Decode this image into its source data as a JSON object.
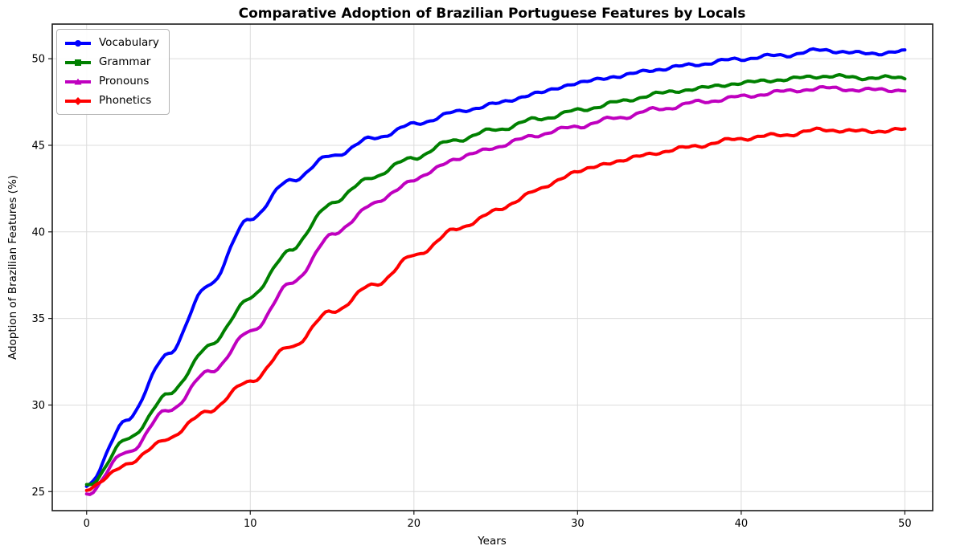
{
  "chart_data": {
    "type": "line",
    "title": "Comparative Adoption of Brazilian Portuguese Features by Locals",
    "xlabel": "Years",
    "ylabel": "Adoption of Brazilian Features (%)",
    "xlim": [
      -2.1,
      51.7
    ],
    "ylim": [
      23.9,
      52.0
    ],
    "xticks": [
      0,
      10,
      20,
      30,
      40,
      50
    ],
    "yticks": [
      25,
      30,
      35,
      40,
      45,
      50
    ],
    "grid": true,
    "grid_color": "#dcdcdc",
    "legend_position": "upper-left",
    "x": [
      0,
      2.5,
      5,
      7.5,
      10,
      12.5,
      15,
      17.5,
      20,
      22.5,
      25,
      27.5,
      30,
      32.5,
      35,
      37.5,
      40,
      42.5,
      45,
      47.5,
      50
    ],
    "series": [
      {
        "name": "Vocabulary",
        "color": "#0000ff",
        "marker": "circle",
        "values": [
          25.3,
          29.2,
          33.0,
          37.0,
          40.8,
          43.0,
          44.4,
          45.4,
          46.2,
          46.9,
          47.4,
          48.0,
          48.6,
          49.0,
          49.4,
          49.7,
          50.0,
          50.2,
          50.5,
          50.3,
          50.4
        ]
      },
      {
        "name": "Grammar",
        "color": "#008000",
        "marker": "square",
        "values": [
          25.3,
          28.0,
          30.6,
          33.4,
          36.2,
          39.0,
          41.7,
          43.2,
          44.3,
          45.3,
          45.9,
          46.5,
          47.0,
          47.5,
          48.0,
          48.3,
          48.6,
          48.8,
          49.0,
          48.9,
          48.9
        ]
      },
      {
        "name": "Pronouns",
        "color": "#bf00bf",
        "marker": "triangle",
        "values": [
          24.9,
          27.3,
          29.7,
          31.9,
          34.2,
          37.0,
          39.8,
          41.6,
          43.0,
          44.2,
          44.9,
          45.6,
          46.1,
          46.6,
          47.1,
          47.5,
          47.8,
          48.1,
          48.3,
          48.2,
          48.2
        ]
      },
      {
        "name": "Phonetics",
        "color": "#ff0000",
        "marker": "diamond",
        "values": [
          25.1,
          26.6,
          28.1,
          29.7,
          31.4,
          33.4,
          35.4,
          36.9,
          38.6,
          40.1,
          41.2,
          42.4,
          43.5,
          44.1,
          44.6,
          45.0,
          45.4,
          45.6,
          45.9,
          45.8,
          45.9
        ]
      }
    ]
  }
}
